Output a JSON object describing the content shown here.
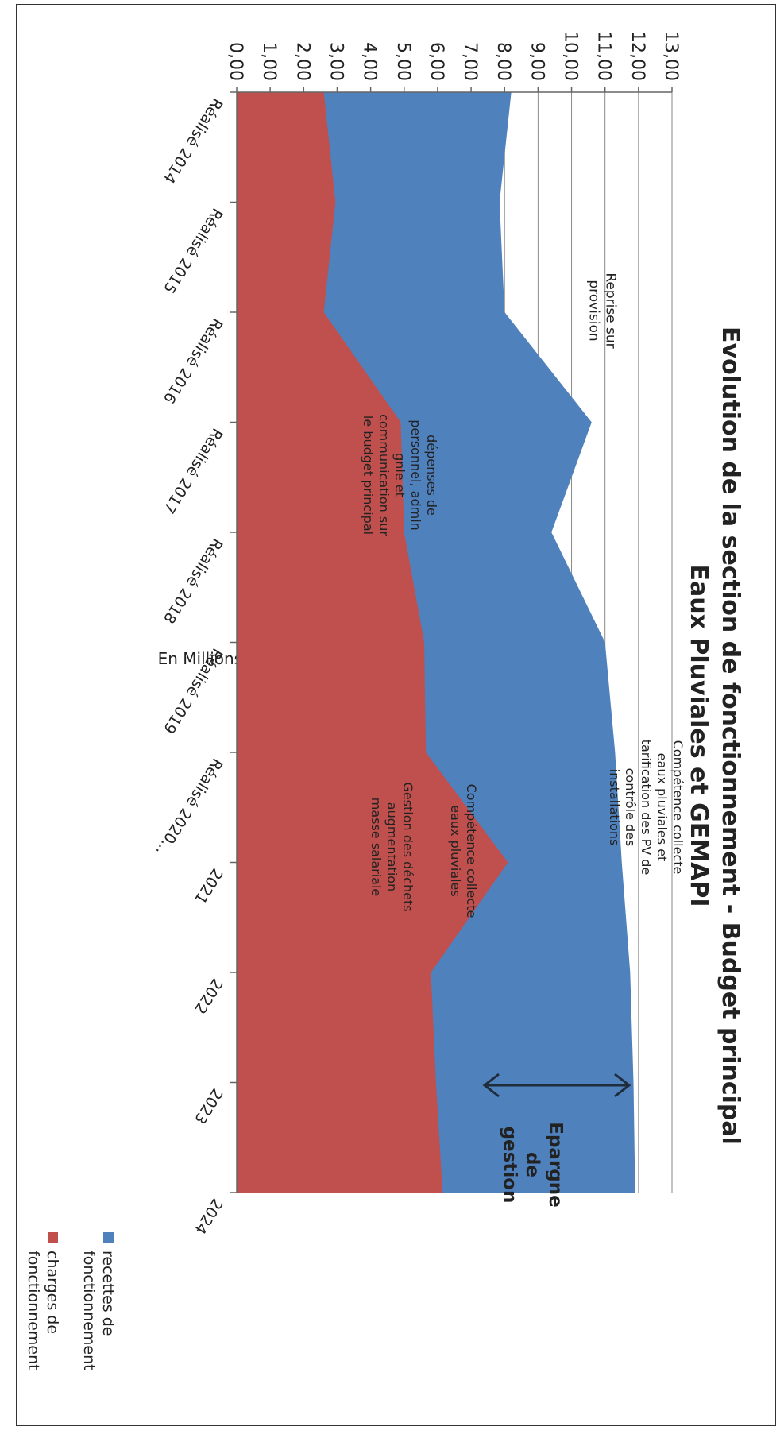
{
  "chart_data": {
    "type": "area",
    "title_line1": "Evolution de la section de fonctionnement - Budget principal",
    "title_line2": "Eaux Pluviales et GEMAPI",
    "ylabel": "En Millions d'Euros",
    "ylim": [
      0,
      13
    ],
    "yticks": [
      "13,00",
      "12,00",
      "11,00",
      "10,00",
      "9,00",
      "8,00",
      "7,00",
      "6,00",
      "5,00",
      "4,00",
      "3,00",
      "2,00",
      "1,00",
      "0,00"
    ],
    "categories": [
      "Réalisé 2014",
      "Réalisé 2015",
      "Réalisé 2016",
      "Réalisé 2017",
      "Réalisé 2018",
      "Réalisé 2019",
      "Réalisé 2020...",
      "2021",
      "2022",
      "2023",
      "2024"
    ],
    "grid": true,
    "legend_position": "right",
    "series": [
      {
        "name": "recettes de fonctionnement",
        "color": "#4F81BD",
        "values": [
          8.2,
          7.85,
          8.0,
          10.6,
          9.4,
          11.0,
          11.3,
          11.5,
          11.75,
          11.85,
          11.9
        ]
      },
      {
        "name": "charges de fonctionnement",
        "color": "#C0504D",
        "values": [
          2.6,
          2.95,
          2.6,
          4.9,
          5.0,
          5.6,
          5.65,
          8.1,
          5.8,
          5.95,
          6.15
        ]
      }
    ],
    "annotations": {
      "reprise": [
        "Reprise sur",
        "provision"
      ],
      "depenses": [
        "dépenses de",
        "personnel, admin",
        "gnle et",
        "communication sur",
        "le budget principal"
      ],
      "competence_top": [
        "Compétence collecte",
        "eaux pluviales et",
        "tarification des PV de",
        "contrôle des",
        "installations"
      ],
      "competence_mid": [
        "Compétence collecte",
        "eaux pluviales"
      ],
      "gestion": [
        "Gestion des déchets",
        "augmentation",
        "masse salariale"
      ],
      "epargne": [
        "Epargne",
        "de",
        "gestion"
      ]
    }
  }
}
